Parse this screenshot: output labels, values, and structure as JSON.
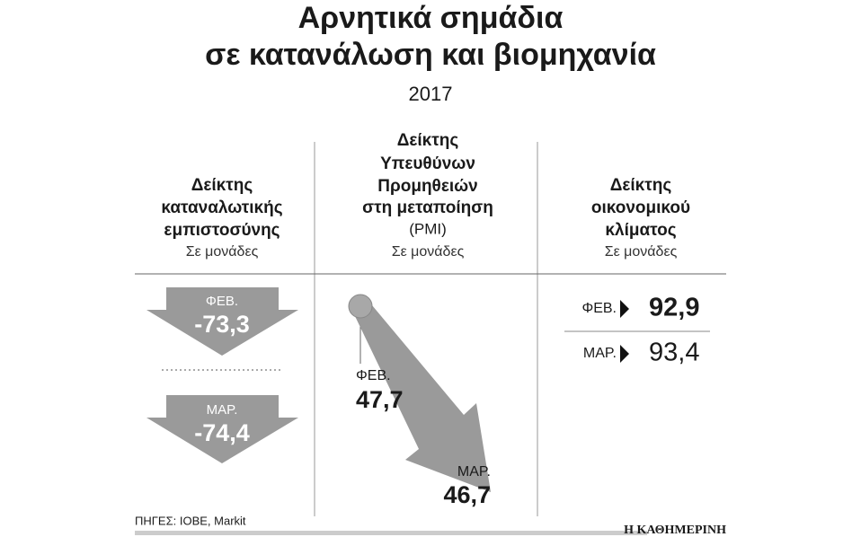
{
  "header": {
    "title": [
      "Αρνητικά σημάδια",
      "σε κατανάλωση και βιομηχανία"
    ],
    "subtitle": "2017"
  },
  "columns": [
    {
      "heading": [
        "Δείκτης",
        "καταναλωτικής",
        "εμπιστοσύνης"
      ],
      "unit": "Σε μονάδες",
      "items": [
        {
          "label": "ΦΕΒ.",
          "value": "-73,3"
        },
        {
          "label": "ΜΑΡ.",
          "value": "-74,4"
        }
      ]
    },
    {
      "heading": [
        "Δείκτης",
        "Υπευθύνων",
        "Προμηθειών",
        "στη μεταποίηση",
        "(PMI)"
      ],
      "unit": "Σε μονάδες",
      "items": [
        {
          "label": "ΦΕΒ.",
          "value": "47,7"
        },
        {
          "label": "ΜΑΡ.",
          "value": "46,7"
        }
      ]
    },
    {
      "heading": [
        "Δείκτης",
        "οικονομικού",
        "κλίματος"
      ],
      "unit": "Σε μονάδες",
      "items": [
        {
          "label": "ΦΕΒ.",
          "value": "92,9"
        },
        {
          "label": "ΜΑΡ.",
          "value": "93,4"
        }
      ]
    }
  ],
  "footer": {
    "source": "ΠΗΓΕΣ: ΙΟΒΕ, Markit",
    "brand": "Η ΚΑΘΗΜΕΡΙΝΗ"
  }
}
